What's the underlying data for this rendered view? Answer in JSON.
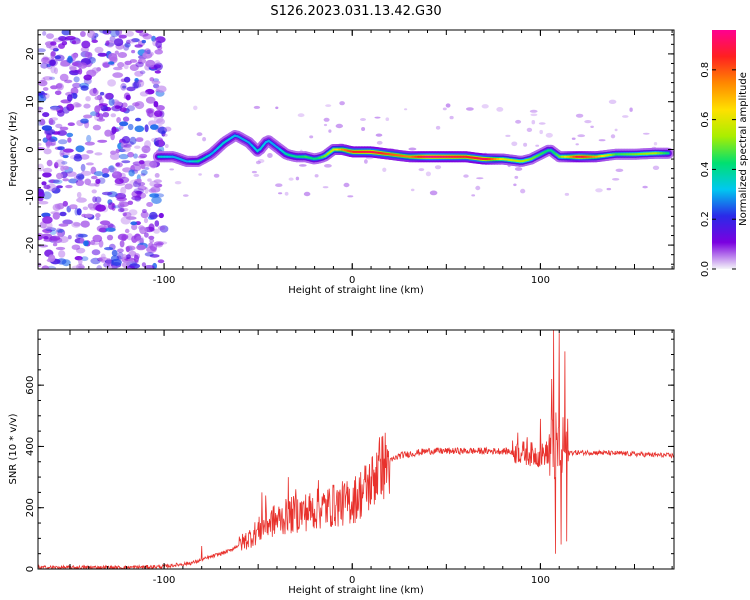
{
  "title": "S126.2023.031.13.42.G30",
  "colors": {
    "snr_line": "#e8312c",
    "axis": "#000000"
  },
  "chart_data": [
    {
      "type": "heatmap",
      "name": "spectrogram",
      "xlabel": "Height of straight line (km)",
      "ylabel": "Frequency (Hz)",
      "xlim": [
        -167,
        171
      ],
      "ylim": [
        -25,
        25
      ],
      "x_ticks": [
        "-100",
        "0",
        "100"
      ],
      "x_tick_values": [
        -100,
        0,
        100
      ],
      "y_ticks": [
        "-20",
        "-10",
        "0",
        "10",
        "20"
      ],
      "y_tick_values": [
        -20,
        -10,
        0,
        10,
        20
      ],
      "colorbar": {
        "label": "Normalized spectral amplitude",
        "range": [
          0,
          0.96
        ],
        "ticks": [
          "0.0",
          "0.2",
          "0.4",
          "0.6",
          "0.8"
        ],
        "tick_values": [
          0.0,
          0.2,
          0.4,
          0.6,
          0.8
        ],
        "stops": [
          "#f4f4f8",
          "#7b00e0",
          "#2a2ae8",
          "#00c8f0",
          "#00e070",
          "#aaee00",
          "#ffe000",
          "#ff8800",
          "#ff2020",
          "#ff0090"
        ]
      },
      "ridge": {
        "x": [
          -103,
          -95,
          -88,
          -82,
          -75,
          -68,
          -62,
          -55,
          -50,
          -45,
          -40,
          -35,
          -30,
          -25,
          -20,
          -15,
          -10,
          -5,
          0,
          10,
          20,
          30,
          40,
          50,
          60,
          70,
          80,
          90,
          95,
          100,
          105,
          110,
          120,
          130,
          140,
          150,
          160,
          168
        ],
        "y": [
          -1.5,
          -1.5,
          -2.5,
          -2.5,
          -1.0,
          1.5,
          3.0,
          1.5,
          -0.5,
          2.0,
          0.5,
          -1.0,
          -1.5,
          -1.5,
          -2.0,
          -1.5,
          0.0,
          0.0,
          -0.5,
          -0.5,
          -1.0,
          -1.5,
          -1.5,
          -1.5,
          -1.5,
          -2.0,
          -2.0,
          -2.5,
          -2.0,
          -1.0,
          0.0,
          -1.5,
          -1.5,
          -1.5,
          -1.0,
          -1.0,
          -0.8,
          -0.8
        ],
        "amplitude": [
          0.35,
          0.3,
          0.3,
          0.4,
          0.3,
          0.35,
          0.3,
          0.3,
          0.35,
          0.3,
          0.3,
          0.4,
          0.4,
          0.45,
          0.4,
          0.5,
          0.6,
          0.75,
          0.85,
          0.9,
          0.8,
          0.75,
          0.95,
          0.9,
          0.85,
          0.9,
          0.6,
          0.55,
          0.5,
          0.45,
          0.4,
          0.5,
          0.9,
          0.7,
          0.45,
          0.5,
          0.55,
          0.4
        ]
      }
    },
    {
      "type": "line",
      "name": "snr",
      "xlabel": "Height of straight line (km)",
      "ylabel": "SNR (10 * v/v)",
      "xlim": [
        -167,
        171
      ],
      "ylim": [
        0,
        780
      ],
      "x_ticks": [
        "-100",
        "0",
        "100"
      ],
      "x_tick_values": [
        -100,
        0,
        100
      ],
      "y_ticks": [
        "0",
        "200",
        "400",
        "600"
      ],
      "y_tick_values": [
        0,
        200,
        400,
        600
      ],
      "trend": {
        "x": [
          -167,
          -120,
          -100,
          -85,
          -75,
          -65,
          -55,
          -45,
          -30,
          -15,
          0,
          10,
          15,
          25,
          40,
          60,
          80,
          90,
          100,
          110,
          115,
          130,
          150,
          171
        ],
        "y": [
          5,
          5,
          8,
          20,
          40,
          60,
          100,
          150,
          180,
          200,
          220,
          280,
          330,
          370,
          385,
          385,
          385,
          380,
          370,
          400,
          380,
          380,
          375,
          370
        ]
      },
      "spikes": [
        {
          "x": -80,
          "y": 75
        },
        {
          "x": -48,
          "y": 250
        },
        {
          "x": -46,
          "y": 240
        },
        {
          "x": -34,
          "y": 300
        },
        {
          "x": -30,
          "y": 260
        },
        {
          "x": -18,
          "y": 290
        },
        {
          "x": -10,
          "y": 270
        },
        {
          "x": 4,
          "y": 265
        },
        {
          "x": 13,
          "y": 380
        },
        {
          "x": 15,
          "y": 360
        },
        {
          "x": 88,
          "y": 445
        },
        {
          "x": 93,
          "y": 430
        },
        {
          "x": 100,
          "y": 490
        },
        {
          "x": 106,
          "y": 620
        },
        {
          "x": 107,
          "y": 780
        },
        {
          "x": 108,
          "y": 50
        },
        {
          "x": 110,
          "y": 770
        },
        {
          "x": 111,
          "y": 80
        },
        {
          "x": 113,
          "y": 710
        },
        {
          "x": 114,
          "y": 90
        }
      ]
    }
  ]
}
